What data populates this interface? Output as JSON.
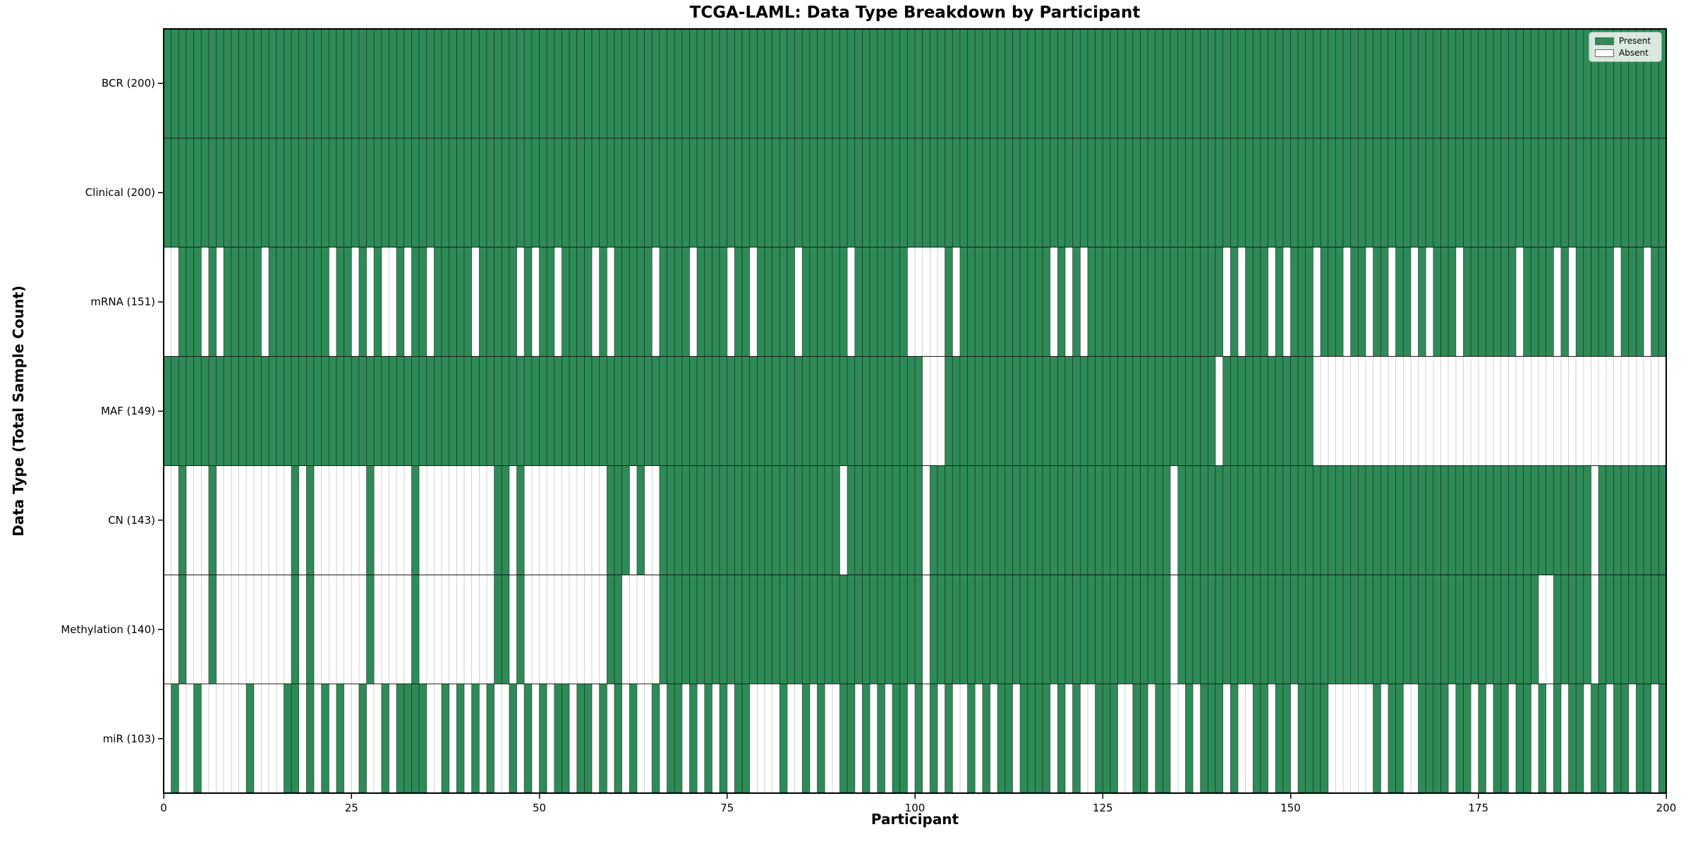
{
  "title": "TCGA-LAML: Data Type Breakdown by Participant",
  "x_axis": {
    "label": "Participant",
    "ticks": [
      "0",
      "25",
      "50",
      "75",
      "100",
      "125",
      "150",
      "175",
      "200"
    ],
    "tick_values": [
      0,
      25,
      50,
      75,
      100,
      125,
      150,
      175,
      200
    ]
  },
  "y_axis": {
    "label": "Data Type (Total Sample Count)"
  },
  "legend": {
    "present_label": "Present",
    "absent_label": "Absent",
    "position": "upper right"
  },
  "colors": {
    "present": "#2e8b57",
    "absent": "#ffffff",
    "cell_edge_on_green": "rgba(0,0,0,0.55)",
    "grid_on_white": "#d2d2d2",
    "row_divider": "#1a1a1a",
    "spine": "#000000"
  },
  "chart_data": {
    "type": "heatmap",
    "title": "TCGA-LAML: Data Type Breakdown by Participant",
    "xlabel": "Participant",
    "ylabel": "Data Type (Total Sample Count)",
    "n_participants": 200,
    "x_range": [
      0,
      200
    ],
    "grid": "per-cell edges",
    "legend_entries": [
      "Present",
      "Absent"
    ],
    "rows": [
      {
        "label": "BCR (200)",
        "name": "BCR",
        "total_present": 200,
        "absent_participants": []
      },
      {
        "label": "Clinical (200)",
        "name": "Clinical",
        "total_present": 200,
        "absent_participants": []
      },
      {
        "label": "mRNA (151)",
        "name": "mRNA",
        "total_present": 151,
        "absent_participants": [
          0,
          1,
          5,
          7,
          13,
          22,
          25,
          27,
          29,
          30,
          32,
          35,
          41,
          47,
          49,
          52,
          57,
          59,
          65,
          70,
          75,
          78,
          84,
          91,
          99,
          100,
          101,
          102,
          103,
          105,
          118,
          120,
          122,
          141,
          143,
          147,
          149,
          153,
          157,
          160,
          163,
          166,
          168,
          172,
          180,
          185,
          187,
          193,
          197
        ]
      },
      {
        "label": "MAF (149)",
        "name": "MAF",
        "total_present": 149,
        "absent_participants": [
          101,
          102,
          103,
          140,
          153,
          154,
          155,
          156,
          157,
          158,
          159,
          160,
          161,
          162,
          163,
          164,
          165,
          166,
          167,
          168,
          169,
          170,
          171,
          172,
          173,
          174,
          175,
          176,
          177,
          178,
          179,
          180,
          181,
          182,
          183,
          184,
          185,
          186,
          187,
          188,
          189,
          190,
          191,
          192,
          193,
          194,
          195,
          196,
          197,
          198,
          199
        ]
      },
      {
        "label": "CN (143)",
        "name": "CN",
        "total_present": 143,
        "absent_participants": [
          0,
          1,
          3,
          4,
          5,
          7,
          8,
          9,
          10,
          11,
          12,
          13,
          14,
          15,
          16,
          18,
          20,
          21,
          22,
          23,
          24,
          25,
          26,
          28,
          29,
          30,
          31,
          32,
          34,
          35,
          36,
          37,
          38,
          39,
          40,
          41,
          42,
          43,
          46,
          48,
          49,
          50,
          51,
          52,
          53,
          54,
          55,
          56,
          57,
          58,
          62,
          64,
          65,
          90,
          101,
          134,
          190
        ]
      },
      {
        "label": "Methylation (140)",
        "name": "Methylation",
        "total_present": 140,
        "absent_participants": [
          0,
          1,
          3,
          4,
          5,
          7,
          8,
          9,
          10,
          11,
          12,
          13,
          14,
          15,
          16,
          18,
          20,
          21,
          22,
          23,
          24,
          25,
          26,
          28,
          29,
          30,
          31,
          32,
          34,
          35,
          36,
          37,
          38,
          39,
          40,
          41,
          42,
          43,
          46,
          48,
          49,
          50,
          51,
          52,
          53,
          54,
          55,
          56,
          57,
          58,
          61,
          62,
          63,
          64,
          65,
          101,
          134,
          183,
          184,
          190
        ]
      },
      {
        "label": "miR (103)",
        "name": "miR",
        "total_present": 103,
        "absent_participants": [
          0,
          2,
          3,
          5,
          6,
          7,
          8,
          9,
          10,
          12,
          13,
          14,
          15,
          18,
          20,
          22,
          24,
          25,
          27,
          28,
          30,
          35,
          36,
          38,
          40,
          42,
          44,
          45,
          47,
          49,
          51,
          54,
          57,
          59,
          61,
          63,
          64,
          66,
          69,
          71,
          73,
          75,
          78,
          79,
          80,
          81,
          83,
          84,
          86,
          88,
          89,
          92,
          94,
          96,
          99,
          101,
          103,
          105,
          106,
          108,
          110,
          113,
          118,
          120,
          122,
          123,
          127,
          128,
          131,
          134,
          135,
          137,
          141,
          143,
          144,
          147,
          150,
          155,
          156,
          157,
          158,
          159,
          160,
          162,
          165,
          166,
          171,
          174,
          176,
          179,
          182,
          184,
          186,
          189,
          192,
          195,
          198
        ]
      }
    ]
  }
}
